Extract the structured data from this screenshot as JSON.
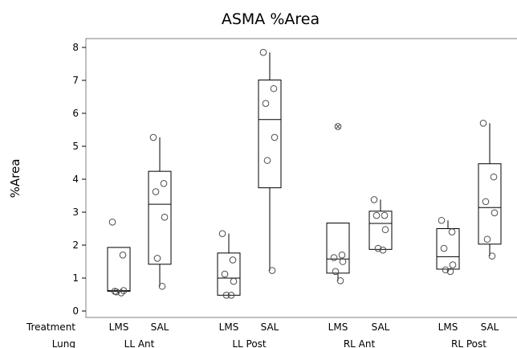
{
  "chart_data": {
    "type": "boxplot",
    "title": "ASMA %Area",
    "ylabel": "%Area",
    "ylim": [
      0,
      8
    ],
    "yticks": [
      0,
      1,
      2,
      3,
      4,
      5,
      6,
      7,
      8
    ],
    "grid": false,
    "row_labels": [
      "Treatment",
      "Lung"
    ],
    "groups": [
      "LL Ant",
      "LL Post",
      "RL Ant",
      "RL Post"
    ],
    "treatments": [
      "LMS",
      "SAL"
    ],
    "series": [
      {
        "group": "LL Ant",
        "treatment": "LMS",
        "q1": 0.6,
        "median": 0.62,
        "q3": 1.93,
        "whisker_low": 0.55,
        "whisker_high": 1.93,
        "outliers": [],
        "points": [
          2.7,
          1.7,
          0.6,
          0.62,
          0.58,
          0.55
        ]
      },
      {
        "group": "LL Ant",
        "treatment": "SAL",
        "q1": 1.42,
        "median": 3.24,
        "q3": 4.24,
        "whisker_low": 0.75,
        "whisker_high": 5.27,
        "outliers": [],
        "points": [
          5.27,
          3.87,
          3.62,
          2.85,
          1.6,
          0.75
        ]
      },
      {
        "group": "LL Post",
        "treatment": "LMS",
        "q1": 0.48,
        "median": 1.0,
        "q3": 1.76,
        "whisker_low": 0.48,
        "whisker_high": 2.35,
        "outliers": [],
        "points": [
          2.35,
          1.55,
          1.12,
          0.9,
          0.48,
          0.48
        ]
      },
      {
        "group": "LL Post",
        "treatment": "SAL",
        "q1": 3.74,
        "median": 5.81,
        "q3": 7.01,
        "whisker_low": 1.23,
        "whisker_high": 7.85,
        "outliers": [],
        "points": [
          7.85,
          6.75,
          6.3,
          5.27,
          4.57,
          1.23
        ]
      },
      {
        "group": "RL Ant",
        "treatment": "LMS",
        "q1": 1.15,
        "median": 1.58,
        "q3": 2.67,
        "whisker_low": 0.92,
        "whisker_high": 2.67,
        "outliers": [
          5.6
        ],
        "points": [
          5.6,
          1.7,
          1.62,
          1.5,
          1.2,
          0.92
        ]
      },
      {
        "group": "RL Ant",
        "treatment": "SAL",
        "q1": 1.87,
        "median": 2.66,
        "q3": 3.03,
        "whisker_low": 1.85,
        "whisker_high": 3.38,
        "outliers": [],
        "points": [
          3.38,
          2.9,
          2.9,
          2.47,
          1.9,
          1.85
        ]
      },
      {
        "group": "RL Post",
        "treatment": "LMS",
        "q1": 1.27,
        "median": 1.65,
        "q3": 2.5,
        "whisker_low": 1.2,
        "whisker_high": 2.75,
        "outliers": [],
        "points": [
          2.75,
          2.4,
          1.9,
          1.4,
          1.25,
          1.2
        ]
      },
      {
        "group": "RL Post",
        "treatment": "SAL",
        "q1": 2.03,
        "median": 3.14,
        "q3": 4.47,
        "whisker_low": 1.67,
        "whisker_high": 5.7,
        "outliers": [],
        "points": [
          5.7,
          4.07,
          3.32,
          2.98,
          2.18,
          1.67
        ]
      }
    ]
  }
}
